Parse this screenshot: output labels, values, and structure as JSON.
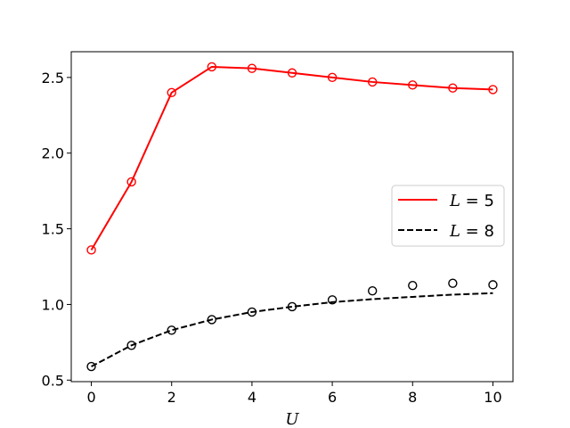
{
  "chart_data": {
    "type": "line",
    "xlabel": "U",
    "ylabel": "",
    "xlim": [
      -0.5,
      10.5
    ],
    "ylim": [
      0.49,
      2.67
    ],
    "xticks": [
      0,
      2,
      4,
      6,
      8,
      10
    ],
    "yticks": [
      0.5,
      1.0,
      1.5,
      2.0,
      2.5
    ],
    "x_tick_labels": [
      "0",
      "2",
      "4",
      "6",
      "8",
      "10"
    ],
    "y_tick_labels": [
      "0.5",
      "1.0",
      "1.5",
      "2.0",
      "2.5"
    ],
    "grid": false,
    "legend": {
      "placement": "center-right",
      "entries": [
        {
          "var": "L",
          "eq": " = 5",
          "color": "#ff0000",
          "dash": "solid"
        },
        {
          "var": "L",
          "eq": " = 8",
          "color": "#000000",
          "dash": "dashed"
        }
      ]
    },
    "series": [
      {
        "color": "#ff0000",
        "line_style": "solid",
        "line_x": [
          0,
          1,
          2,
          3,
          4,
          5,
          6,
          7,
          8,
          9,
          10
        ],
        "line_y": [
          1.36,
          1.81,
          2.4,
          2.57,
          2.56,
          2.53,
          2.5,
          2.47,
          2.45,
          2.43,
          2.42
        ],
        "marker_x": [
          0,
          1,
          2,
          3,
          4,
          5,
          6,
          7,
          8,
          9,
          10
        ],
        "marker_y": [
          1.36,
          1.81,
          2.4,
          2.57,
          2.56,
          2.53,
          2.5,
          2.47,
          2.45,
          2.43,
          2.42
        ],
        "marker": "open-circle"
      },
      {
        "color": "#000000",
        "line_style": "dashed",
        "line_x": [
          0,
          1,
          2,
          3,
          4,
          5,
          6,
          7,
          8,
          9,
          10
        ],
        "line_y": [
          0.59,
          0.73,
          0.83,
          0.9,
          0.95,
          0.985,
          1.015,
          1.035,
          1.05,
          1.065,
          1.075
        ],
        "marker_x": [
          0,
          1,
          2,
          3,
          4,
          5,
          6,
          7,
          8,
          9,
          10
        ],
        "marker_y": [
          0.59,
          0.73,
          0.83,
          0.9,
          0.95,
          0.985,
          1.03,
          1.09,
          1.125,
          1.14,
          1.13
        ],
        "marker": "open-circle"
      }
    ]
  }
}
